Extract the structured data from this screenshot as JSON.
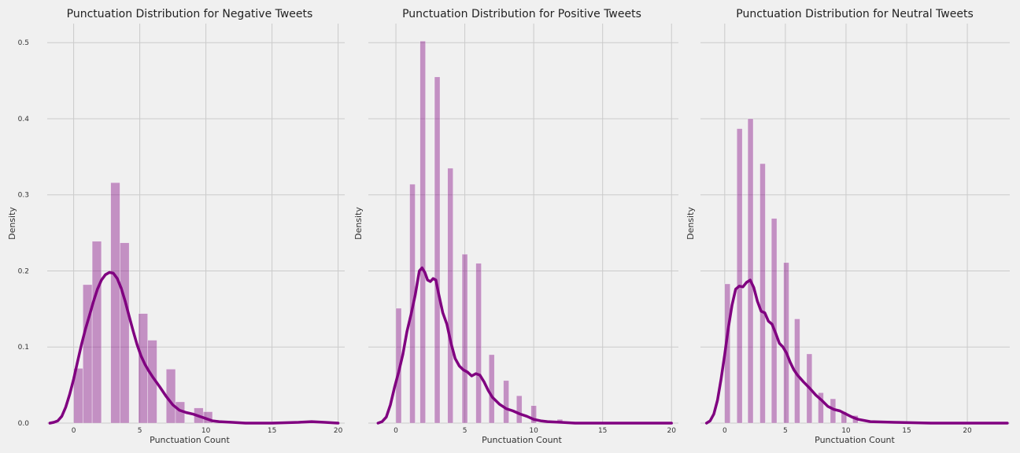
{
  "chart_data": [
    {
      "type": "histogram+kde",
      "title": "Punctuation Distribution for Negative Tweets",
      "xlabel": "Punctuation Count",
      "ylabel": "Density",
      "xlim": [
        -2,
        20.5
      ],
      "ylim": [
        0,
        0.525
      ],
      "xticks": [
        0,
        5,
        10,
        15,
        20
      ],
      "yticks": [
        0.0,
        0.1,
        0.2,
        0.3,
        0.4,
        0.5
      ],
      "grid": true,
      "color": "#800080",
      "bars": [
        {
          "x0": 0,
          "x1": 0.7,
          "density": 0.072
        },
        {
          "x0": 0.7,
          "x1": 1.4,
          "density": 0.182
        },
        {
          "x0": 1.4,
          "x1": 2.1,
          "density": 0.239
        },
        {
          "x0": 2.1,
          "x1": 2.8,
          "density": 0.0
        },
        {
          "x0": 2.8,
          "x1": 3.5,
          "density": 0.316
        },
        {
          "x0": 3.5,
          "x1": 4.2,
          "density": 0.237
        },
        {
          "x0": 4.2,
          "x1": 4.9,
          "density": 0.0
        },
        {
          "x0": 4.9,
          "x1": 5.6,
          "density": 0.144
        },
        {
          "x0": 5.6,
          "x1": 6.3,
          "density": 0.109
        },
        {
          "x0": 6.3,
          "x1": 7.0,
          "density": 0.0
        },
        {
          "x0": 7.0,
          "x1": 7.7,
          "density": 0.071
        },
        {
          "x0": 7.7,
          "x1": 8.4,
          "density": 0.028
        },
        {
          "x0": 8.4,
          "x1": 9.1,
          "density": 0.0
        },
        {
          "x0": 9.1,
          "x1": 9.8,
          "density": 0.02
        },
        {
          "x0": 9.8,
          "x1": 10.5,
          "density": 0.015
        },
        {
          "x0": 10.5,
          "x1": 11.2,
          "density": 0.0
        },
        {
          "x0": 11.2,
          "x1": 11.9,
          "density": 0.003
        }
      ],
      "kde": {
        "x": [
          -1.8,
          -1.5,
          -1.2,
          -0.9,
          -0.6,
          -0.3,
          0,
          0.3,
          0.6,
          0.9,
          1.2,
          1.5,
          1.8,
          2.1,
          2.4,
          2.7,
          3.0,
          3.3,
          3.6,
          3.9,
          4.2,
          4.5,
          4.8,
          5.1,
          5.4,
          5.7,
          6.0,
          6.5,
          7.0,
          7.5,
          8.0,
          8.5,
          9.0,
          9.5,
          10.0,
          10.5,
          11.0,
          12.0,
          13.0,
          15.0,
          17.0,
          18.0,
          19.0,
          20.0
        ],
        "y": [
          0.0,
          0.001,
          0.003,
          0.009,
          0.021,
          0.038,
          0.058,
          0.081,
          0.104,
          0.124,
          0.142,
          0.16,
          0.176,
          0.188,
          0.195,
          0.198,
          0.197,
          0.19,
          0.177,
          0.16,
          0.14,
          0.121,
          0.103,
          0.088,
          0.077,
          0.068,
          0.06,
          0.048,
          0.035,
          0.024,
          0.017,
          0.014,
          0.012,
          0.009,
          0.006,
          0.003,
          0.002,
          0.001,
          0.0,
          0.0,
          0.001,
          0.002,
          0.001,
          0.0
        ]
      }
    },
    {
      "type": "histogram+kde",
      "title": "Punctuation Distribution for Positive Tweets",
      "xlabel": "Punctuation Count",
      "ylabel": "Density",
      "xlim": [
        -2,
        20.5
      ],
      "ylim": [
        0,
        0.525
      ],
      "xticks": [
        0,
        5,
        10,
        15,
        20
      ],
      "yticks": [
        0.0,
        0.1,
        0.2,
        0.3,
        0.4,
        0.5
      ],
      "grid": true,
      "color": "#800080",
      "bars": [
        {
          "x0": 0,
          "x1": 0.4,
          "density": 0.151
        },
        {
          "x0": 1,
          "x1": 1.4,
          "density": 0.314
        },
        {
          "x0": 1.75,
          "x1": 2.15,
          "density": 0.502
        },
        {
          "x0": 2.8,
          "x1": 3.2,
          "density": 0.455
        },
        {
          "x0": 3.75,
          "x1": 4.15,
          "density": 0.335
        },
        {
          "x0": 4.8,
          "x1": 5.2,
          "density": 0.222
        },
        {
          "x0": 5.8,
          "x1": 6.2,
          "density": 0.21
        },
        {
          "x0": 6.75,
          "x1": 7.15,
          "density": 0.09
        },
        {
          "x0": 7.8,
          "x1": 8.2,
          "density": 0.056
        },
        {
          "x0": 8.75,
          "x1": 9.15,
          "density": 0.036
        },
        {
          "x0": 9.8,
          "x1": 10.2,
          "density": 0.023
        },
        {
          "x0": 11.7,
          "x1": 12.1,
          "density": 0.005
        }
      ],
      "kde": {
        "x": [
          -1.3,
          -1.0,
          -0.7,
          -0.4,
          -0.1,
          0.2,
          0.5,
          0.8,
          1.1,
          1.4,
          1.7,
          1.9,
          2.1,
          2.3,
          2.5,
          2.7,
          2.9,
          3.1,
          3.4,
          3.7,
          4.0,
          4.3,
          4.6,
          4.9,
          5.2,
          5.5,
          5.8,
          6.1,
          6.4,
          6.7,
          7.0,
          7.5,
          8.0,
          8.5,
          9.0,
          9.5,
          10.0,
          10.5,
          11.0,
          12.0,
          13.0,
          15.0,
          17.0,
          20.0
        ],
        "y": [
          0.0,
          0.002,
          0.008,
          0.024,
          0.047,
          0.067,
          0.09,
          0.12,
          0.143,
          0.168,
          0.2,
          0.204,
          0.198,
          0.188,
          0.186,
          0.19,
          0.188,
          0.17,
          0.145,
          0.13,
          0.105,
          0.085,
          0.075,
          0.07,
          0.067,
          0.062,
          0.065,
          0.063,
          0.054,
          0.043,
          0.034,
          0.025,
          0.019,
          0.016,
          0.012,
          0.009,
          0.005,
          0.003,
          0.002,
          0.001,
          0.0,
          0.0,
          0.0,
          0.0
        ]
      }
    },
    {
      "type": "histogram+kde",
      "title": "Punctuation Distribution for Neutral Tweets",
      "xlabel": "Punctuation Count",
      "ylabel": "Density",
      "xlim": [
        -2,
        23.5
      ],
      "ylim": [
        0,
        0.525
      ],
      "xticks": [
        0,
        5,
        10,
        15,
        20
      ],
      "yticks": [
        0.0,
        0.1,
        0.2,
        0.3,
        0.4,
        0.5
      ],
      "grid": true,
      "color": "#800080",
      "bars": [
        {
          "x0": 0,
          "x1": 0.45,
          "density": 0.183
        },
        {
          "x0": 1,
          "x1": 1.45,
          "density": 0.387
        },
        {
          "x0": 1.9,
          "x1": 2.35,
          "density": 0.4
        },
        {
          "x0": 2.9,
          "x1": 3.35,
          "density": 0.341
        },
        {
          "x0": 3.85,
          "x1": 4.3,
          "density": 0.269
        },
        {
          "x0": 4.85,
          "x1": 5.3,
          "density": 0.211
        },
        {
          "x0": 5.75,
          "x1": 6.2,
          "density": 0.137
        },
        {
          "x0": 6.75,
          "x1": 7.2,
          "density": 0.091
        },
        {
          "x0": 7.7,
          "x1": 8.15,
          "density": 0.04
        },
        {
          "x0": 8.7,
          "x1": 9.15,
          "density": 0.032
        },
        {
          "x0": 9.6,
          "x1": 10.05,
          "density": 0.015
        },
        {
          "x0": 10.55,
          "x1": 11.0,
          "density": 0.01
        }
      ],
      "kde": {
        "x": [
          -1.5,
          -1.2,
          -0.9,
          -0.6,
          -0.3,
          0,
          0.3,
          0.6,
          0.9,
          1.2,
          1.5,
          1.8,
          2.1,
          2.4,
          2.7,
          3.0,
          3.3,
          3.6,
          3.9,
          4.2,
          4.5,
          4.8,
          5.1,
          5.4,
          5.7,
          6.0,
          6.5,
          7.0,
          7.5,
          8.0,
          8.5,
          9.0,
          9.5,
          10.0,
          10.5,
          11.0,
          12.0,
          14.0,
          17.0,
          20.0,
          23.3
        ],
        "y": [
          0.0,
          0.003,
          0.012,
          0.03,
          0.058,
          0.09,
          0.125,
          0.155,
          0.176,
          0.18,
          0.179,
          0.185,
          0.188,
          0.178,
          0.16,
          0.147,
          0.145,
          0.134,
          0.13,
          0.118,
          0.105,
          0.1,
          0.092,
          0.08,
          0.07,
          0.063,
          0.054,
          0.046,
          0.037,
          0.03,
          0.022,
          0.018,
          0.016,
          0.012,
          0.008,
          0.005,
          0.002,
          0.001,
          0.0,
          0.0,
          0.0
        ]
      }
    }
  ]
}
